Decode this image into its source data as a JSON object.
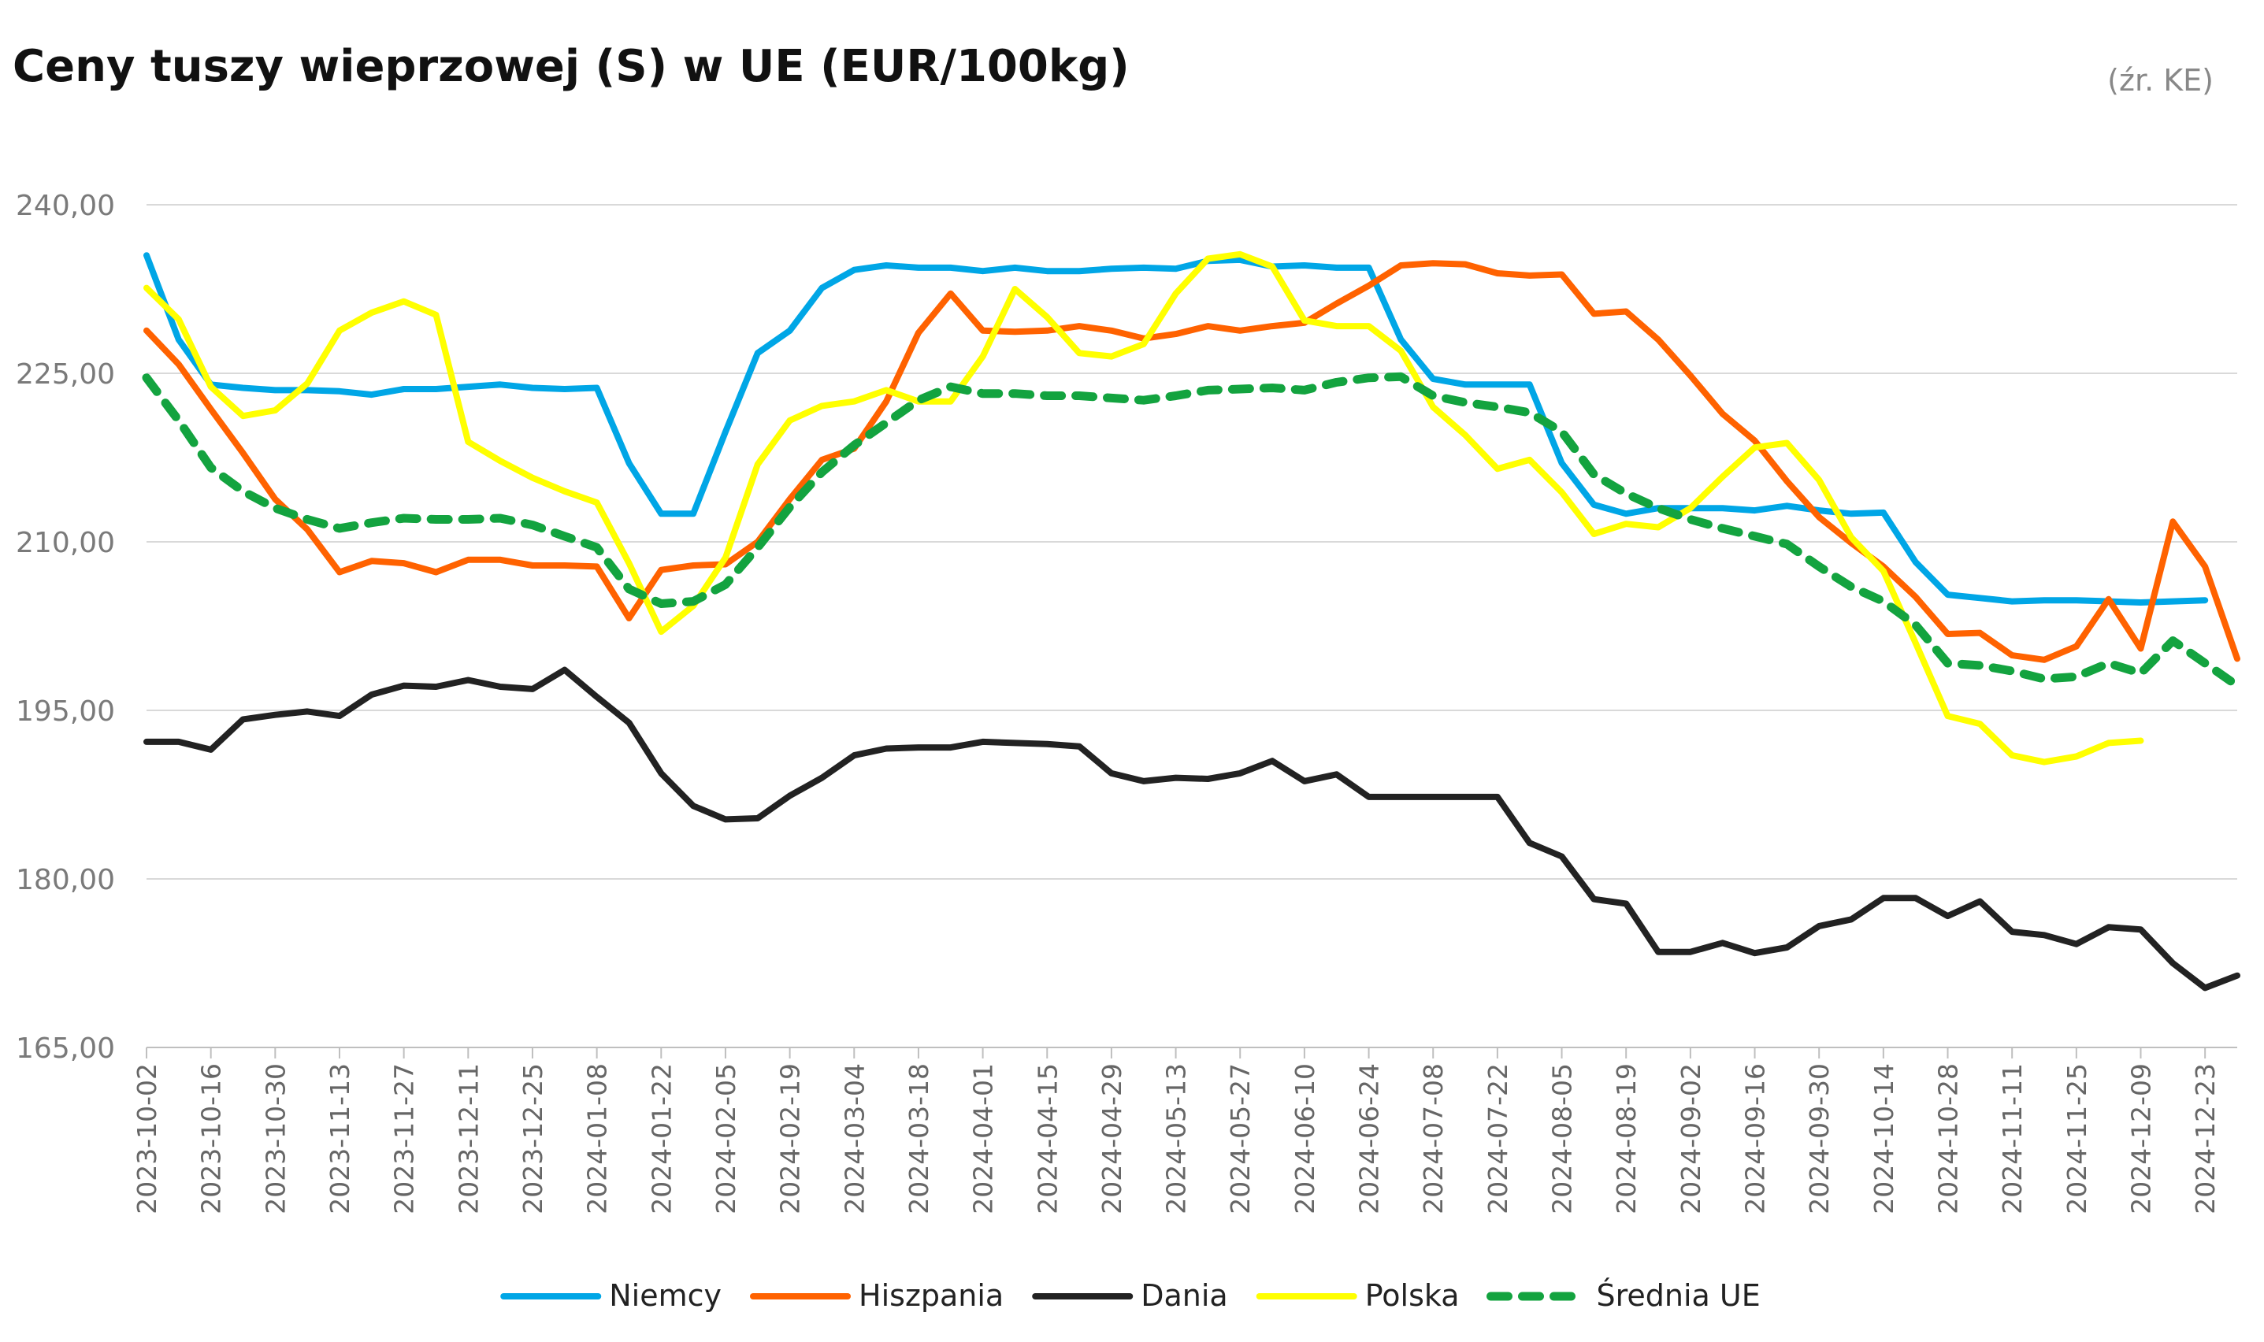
{
  "chart_data": {
    "type": "line",
    "title": "Ceny tuszy wieprzowej (S) w UE (EUR/100kg)",
    "source": "(źr. KE)",
    "xlabel": "",
    "ylabel": "",
    "ylim": [
      165,
      240
    ],
    "yticks": [
      "165,00",
      "180,00",
      "195,00",
      "210,00",
      "225,00",
      "240,00"
    ],
    "grid": true,
    "legend_position": "bottom",
    "x": [
      "2023-10-02",
      "2023-10-09",
      "2023-10-16",
      "2023-10-23",
      "2023-10-30",
      "2023-11-06",
      "2023-11-13",
      "2023-11-20",
      "2023-11-27",
      "2023-12-04",
      "2023-12-11",
      "2023-12-18",
      "2023-12-25",
      "2024-01-01",
      "2024-01-08",
      "2024-01-15",
      "2024-01-22",
      "2024-01-29",
      "2024-02-05",
      "2024-02-12",
      "2024-02-19",
      "2024-02-26",
      "2024-03-04",
      "2024-03-11",
      "2024-03-18",
      "2024-03-25",
      "2024-04-01",
      "2024-04-08",
      "2024-04-15",
      "2024-04-22",
      "2024-04-29",
      "2024-05-06",
      "2024-05-13",
      "2024-05-20",
      "2024-05-27",
      "2024-06-03",
      "2024-06-10",
      "2024-06-17",
      "2024-06-24",
      "2024-07-01",
      "2024-07-08",
      "2024-07-15",
      "2024-07-22",
      "2024-07-29",
      "2024-08-05",
      "2024-08-12",
      "2024-08-19",
      "2024-08-26",
      "2024-09-02",
      "2024-09-09",
      "2024-09-16",
      "2024-09-23",
      "2024-09-30",
      "2024-10-07",
      "2024-10-14",
      "2024-10-21",
      "2024-10-28",
      "2024-11-04",
      "2024-11-11",
      "2024-11-18",
      "2024-11-25",
      "2024-12-02",
      "2024-12-09",
      "2024-12-16",
      "2024-12-23",
      "2024-12-30"
    ],
    "x_tick_labels": [
      "2023-10-02",
      "2023-10-16",
      "2023-10-30",
      "2023-11-13",
      "2023-11-27",
      "2023-12-11",
      "2023-12-25",
      "2024-01-08",
      "2024-01-22",
      "2024-02-05",
      "2024-02-19",
      "2024-03-04",
      "2024-03-18",
      "2024-04-01",
      "2024-04-15",
      "2024-04-29",
      "2024-05-13",
      "2024-05-27",
      "2024-06-10",
      "2024-06-24",
      "2024-07-08",
      "2024-07-22",
      "2024-08-05",
      "2024-08-19",
      "2024-09-02",
      "2024-09-16",
      "2024-09-30",
      "2024-10-14",
      "2024-10-28",
      "2024-11-11",
      "2024-11-25",
      "2024-12-09",
      "2024-12-23"
    ],
    "series": [
      {
        "name": "Niemcy",
        "color": "#00a6e6",
        "dash": "solid",
        "values": [
          235.5,
          228,
          224,
          223.7,
          223.5,
          223.5,
          223.4,
          223.1,
          223.6,
          223.6,
          223.8,
          224,
          223.7,
          223.6,
          223.7,
          217,
          212.5,
          212.5,
          219.8,
          226.8,
          228.8,
          232.6,
          234.2,
          234.6,
          234.4,
          234.4,
          234.1,
          234.4,
          234.1,
          234.1,
          234.3,
          234.4,
          234.3,
          235,
          235.1,
          234.5,
          234.6,
          234.4,
          234.4,
          228,
          224.5,
          224,
          224,
          224,
          217,
          213.3,
          212.5,
          213,
          213,
          213,
          212.8,
          213.2,
          212.8,
          212.5,
          212.6,
          208.2,
          205.3,
          205,
          204.7,
          204.8,
          204.8,
          204.7,
          204.6,
          204.7,
          204.8,
          null
        ]
      },
      {
        "name": "Hiszpania",
        "color": "#ff6200",
        "dash": "solid",
        "values": [
          228.8,
          225.8,
          221.8,
          217.9,
          213.8,
          211.1,
          207.3,
          208.3,
          208.1,
          207.3,
          208.4,
          208.4,
          207.9,
          207.9,
          207.8,
          203.2,
          207.5,
          207.9,
          208,
          210,
          213.8,
          217.3,
          218.3,
          222.5,
          228.6,
          232.1,
          228.8,
          228.7,
          228.8,
          229.2,
          228.8,
          228.1,
          228.5,
          229.2,
          228.8,
          229.2,
          229.5,
          231.2,
          232.8,
          234.6,
          234.8,
          234.7,
          233.9,
          233.7,
          233.8,
          230.3,
          230.5,
          228,
          224.8,
          221.4,
          219,
          215.4,
          212.2,
          209.9,
          207.8,
          205.1,
          201.8,
          201.9,
          199.9,
          199.5,
          200.7,
          204.9,
          200.5,
          211.8,
          207.8,
          199.6
        ]
      },
      {
        "name": "Dania",
        "color": "#222222",
        "dash": "solid",
        "values": [
          192.2,
          192.2,
          191.5,
          194.2,
          194.6,
          194.9,
          194.5,
          196.4,
          197.2,
          197.1,
          197.7,
          197.1,
          196.9,
          198.6,
          196.2,
          193.9,
          189.4,
          186.5,
          185.3,
          185.4,
          187.4,
          189,
          191,
          191.6,
          191.7,
          191.7,
          192.2,
          192.1,
          192,
          191.8,
          189.4,
          188.7,
          189,
          188.9,
          189.4,
          190.5,
          188.7,
          189.3,
          187.3,
          187.3,
          187.3,
          187.3,
          187.3,
          183.2,
          182,
          178.2,
          177.8,
          173.5,
          173.5,
          174.3,
          173.4,
          173.9,
          175.8,
          176.4,
          178.3,
          178.3,
          176.7,
          178,
          175.3,
          175,
          174.2,
          175.7,
          175.5,
          172.5,
          170.3,
          171.4
        ]
      },
      {
        "name": "Polska",
        "color": "#ffff00",
        "dash": "solid",
        "values": [
          232.6,
          229.8,
          223.8,
          221.2,
          221.7,
          224.1,
          228.8,
          230.4,
          231.4,
          230.2,
          218.9,
          217.2,
          215.7,
          214.5,
          213.5,
          208.1,
          202,
          204.3,
          208.6,
          216.9,
          220.8,
          222.1,
          222.5,
          223.5,
          222.5,
          222.5,
          226.5,
          232.5,
          230,
          226.8,
          226.5,
          227.6,
          232.1,
          235.2,
          235.6,
          234.5,
          229.7,
          229.2,
          229.2,
          227,
          222,
          219.5,
          216.5,
          217.3,
          214.4,
          210.7,
          211.6,
          211.3,
          213,
          215.8,
          218.4,
          218.8,
          215.5,
          210.4,
          207.4,
          201,
          194.5,
          193.8,
          191,
          190.4,
          190.9,
          192.1,
          192.3,
          null,
          null,
          null
        ]
      },
      {
        "name": "Średnia UE",
        "color": "#13a33f",
        "dash": "dashed",
        "values": [
          224.6,
          220.8,
          216.6,
          214.5,
          213,
          212,
          211.2,
          211.7,
          212.1,
          212,
          212,
          212.1,
          211.5,
          210.5,
          209.5,
          205.8,
          204.5,
          204.7,
          206.2,
          209.5,
          213.1,
          216.2,
          218.6,
          220.6,
          222.6,
          223.8,
          223.2,
          223.2,
          223,
          223,
          222.8,
          222.6,
          223,
          223.5,
          223.6,
          223.7,
          223.5,
          224.2,
          224.6,
          224.7,
          223,
          222.4,
          222,
          221.5,
          219.8,
          216,
          214.3,
          213,
          212,
          211.2,
          210.5,
          209.8,
          207.8,
          206,
          204.7,
          202.6,
          199.2,
          199,
          198.5,
          197.8,
          198,
          199.2,
          198.3,
          201.2,
          199.2,
          197.2
        ]
      }
    ]
  }
}
